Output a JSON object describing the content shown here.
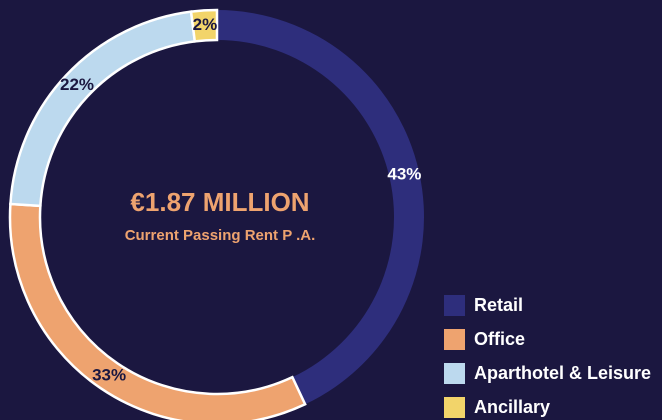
{
  "chart_data": {
    "type": "donut",
    "title": "€1.87 MILLION",
    "subtitle": "Current Passing Rent P .A.",
    "categories": [
      "Retail",
      "Office",
      "Aparthotel & Leisure",
      "Ancillary"
    ],
    "values": [
      43,
      33,
      22,
      2
    ],
    "value_labels": [
      "43%",
      "33%",
      "22%",
      "2%"
    ],
    "colors": [
      "#2e2e7c",
      "#eea36f",
      "#bcd9ee",
      "#f2d46a"
    ],
    "legend": "bottom-right"
  }
}
